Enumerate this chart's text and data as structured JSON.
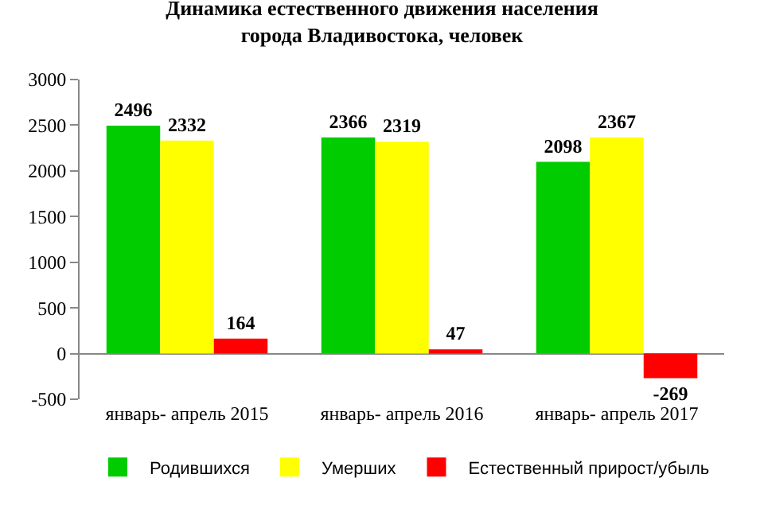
{
  "chart_data": {
    "type": "bar",
    "title": "Динамика естественного движения населения\nгорода Владивостока, человек",
    "categories": [
      "январь- апрель 2015",
      "январь- апрель 2016",
      "январь- апрель 2017"
    ],
    "series": [
      {
        "name": "Родившихся",
        "color": "#00cc00",
        "values": [
          2496,
          2366,
          2098
        ]
      },
      {
        "name": "Умерших",
        "color": "#ffff00",
        "values": [
          2332,
          2319,
          2367
        ]
      },
      {
        "name": "Естественный прирост/убыль",
        "color": "#ff0000",
        "values": [
          164,
          47,
          -269
        ]
      }
    ],
    "ylim": [
      -500,
      3000
    ],
    "yticks": [
      -500,
      0,
      500,
      1000,
      1500,
      2000,
      2500,
      3000
    ],
    "grid": false,
    "legend": "bottom",
    "data_labels": true
  }
}
